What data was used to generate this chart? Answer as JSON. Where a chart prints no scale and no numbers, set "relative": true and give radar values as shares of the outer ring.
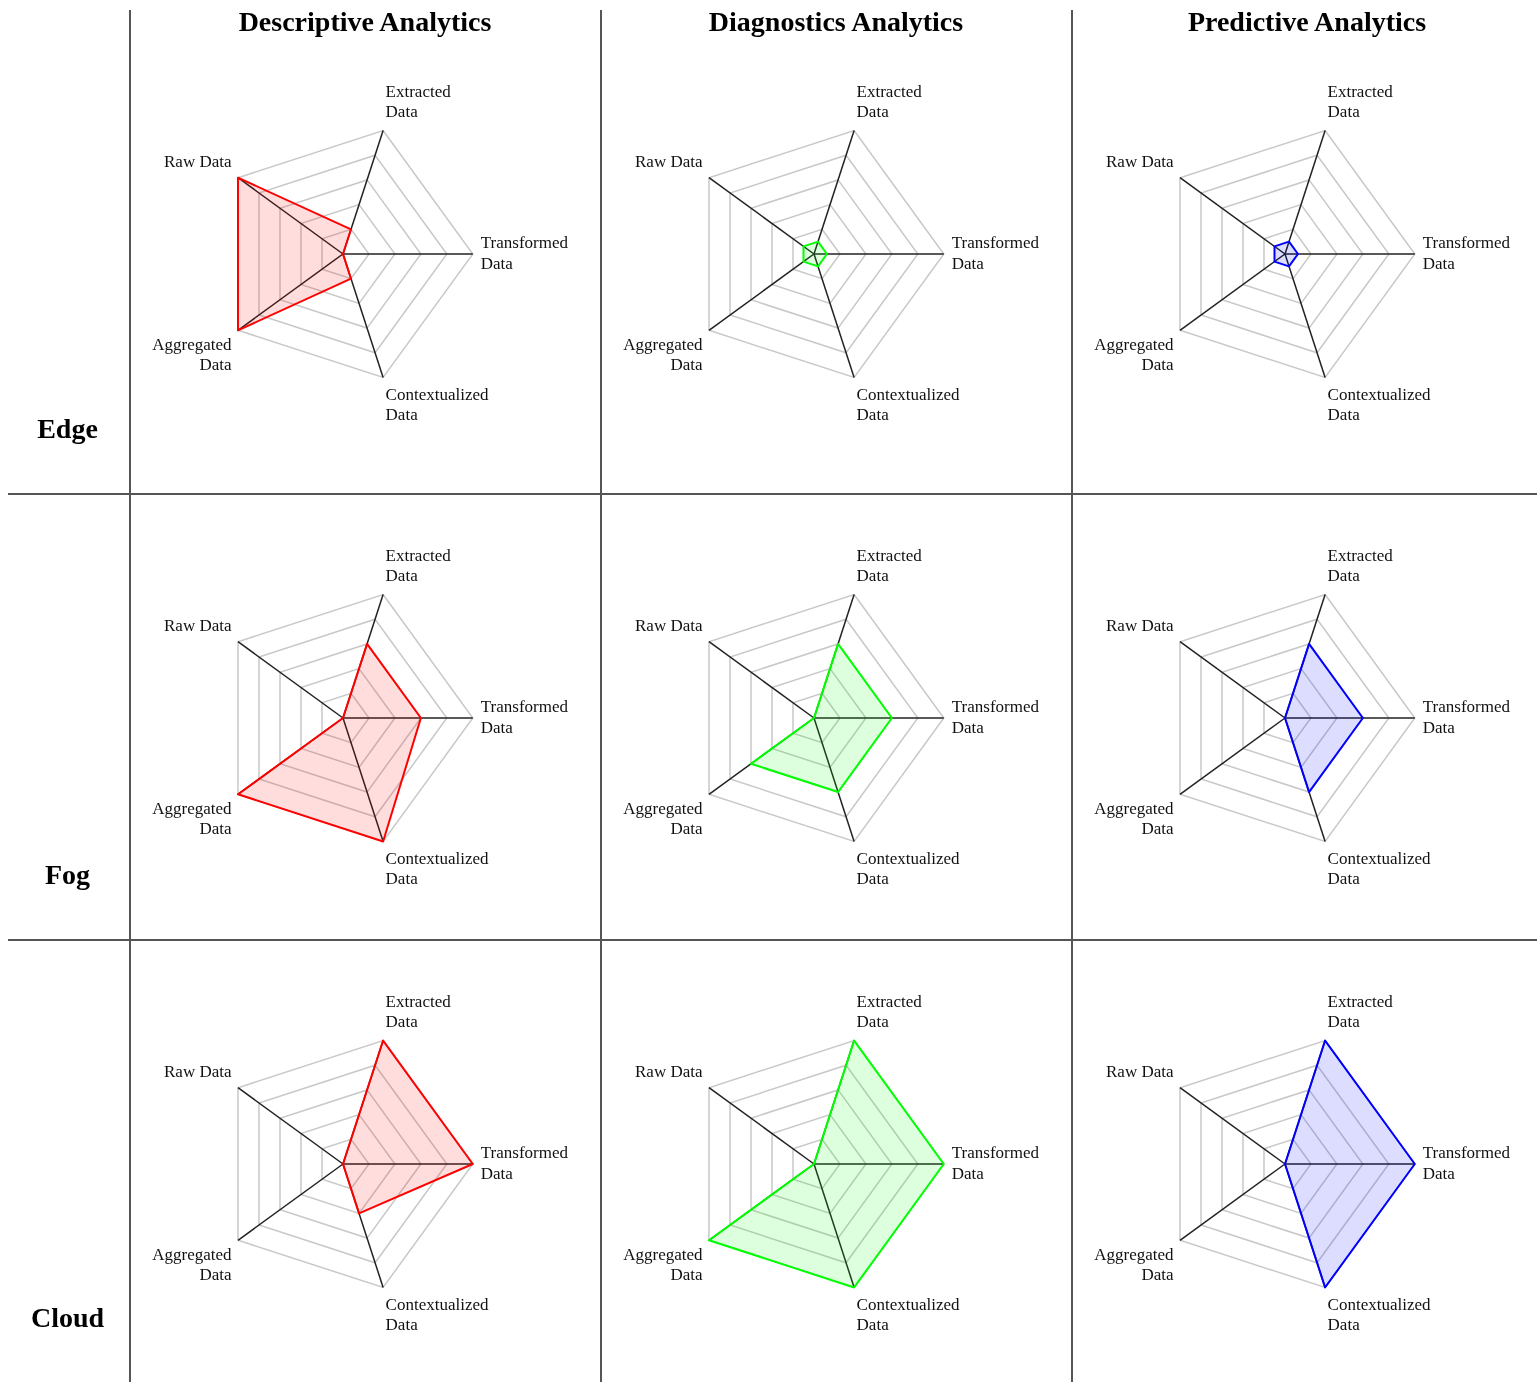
{
  "chart_data": [
    {
      "type": "radar",
      "title": "Descriptive Analytics",
      "ylabel": "Edge",
      "relative": true,
      "grid": true,
      "categories": [
        "Extracted Data",
        "Transformed Data",
        "Contextualized Data",
        "Aggregated Data",
        "Raw Data"
      ],
      "series": [
        {
          "color": "#ff0000",
          "values": [
            0.2,
            0,
            0.2,
            1,
            1
          ]
        }
      ]
    },
    {
      "type": "radar",
      "title": "Diagnostics Analytics",
      "relative": true,
      "grid": true,
      "categories": [
        "Extracted Data",
        "Transformed Data",
        "Contextualized Data",
        "Aggregated Data",
        "Raw Data"
      ],
      "series": [
        {
          "color": "#00ff00",
          "values": [
            0.1,
            0.1,
            0.1,
            0.1,
            0.1
          ]
        }
      ]
    },
    {
      "type": "radar",
      "title": "Predictive Analytics",
      "relative": true,
      "grid": true,
      "categories": [
        "Extracted Data",
        "Transformed Data",
        "Contextualized Data",
        "Aggregated Data",
        "Raw Data"
      ],
      "series": [
        {
          "color": "#0000ff",
          "values": [
            0.1,
            0.1,
            0.1,
            0.1,
            0.1
          ]
        }
      ]
    },
    {
      "type": "radar",
      "ylabel": "Fog",
      "relative": true,
      "grid": true,
      "categories": [
        "Extracted Data",
        "Transformed Data",
        "Contextualized Data",
        "Aggregated Data",
        "Raw Data"
      ],
      "series": [
        {
          "color": "#ff0000",
          "values": [
            0.6,
            0.6,
            1,
            1,
            0
          ]
        }
      ]
    },
    {
      "type": "radar",
      "relative": true,
      "grid": true,
      "categories": [
        "Extracted Data",
        "Transformed Data",
        "Contextualized Data",
        "Aggregated Data",
        "Raw Data"
      ],
      "series": [
        {
          "color": "#00ff00",
          "values": [
            0.6,
            0.6,
            0.6,
            0.6,
            0
          ]
        }
      ]
    },
    {
      "type": "radar",
      "relative": true,
      "grid": true,
      "categories": [
        "Extracted Data",
        "Transformed Data",
        "Contextualized Data",
        "Aggregated Data",
        "Raw Data"
      ],
      "series": [
        {
          "color": "#0000ff",
          "values": [
            0.6,
            0.6,
            0.6,
            0,
            0
          ]
        }
      ]
    },
    {
      "type": "radar",
      "ylabel": "Cloud",
      "relative": true,
      "grid": true,
      "categories": [
        "Extracted Data",
        "Transformed Data",
        "Contextualized Data",
        "Aggregated Data",
        "Raw Data"
      ],
      "series": [
        {
          "color": "#ff0000",
          "values": [
            1,
            1,
            0.4,
            0,
            0
          ]
        }
      ]
    },
    {
      "type": "radar",
      "relative": true,
      "grid": true,
      "categories": [
        "Extracted Data",
        "Transformed Data",
        "Contextualized Data",
        "Aggregated Data",
        "Raw Data"
      ],
      "series": [
        {
          "color": "#00ff00",
          "values": [
            1,
            1,
            1,
            1,
            0
          ]
        }
      ]
    },
    {
      "type": "radar",
      "relative": true,
      "grid": true,
      "categories": [
        "Extracted Data",
        "Transformed Data",
        "Contextualized Data",
        "Aggregated Data",
        "Raw Data"
      ],
      "series": [
        {
          "color": "#0000ff",
          "values": [
            1,
            1,
            1,
            0,
            0
          ]
        }
      ]
    }
  ]
}
